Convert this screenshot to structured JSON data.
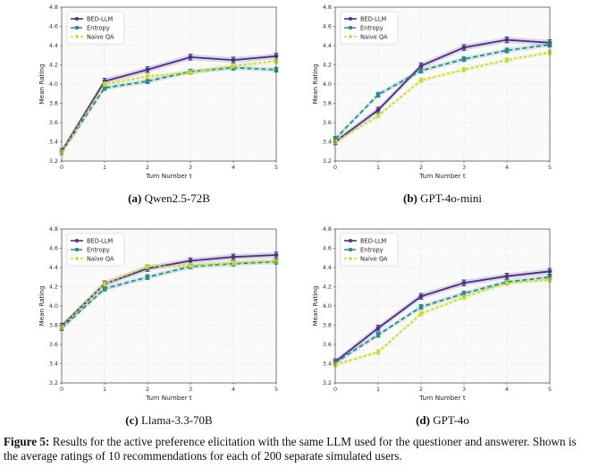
{
  "figure": {
    "caption_label": "Figure 5:",
    "caption_text": " Results for the active preference elicitation with the same LLM used for the questioner and answerer. Shown is the average ratings of 10 recommendations for each of 200 separate simulated users."
  },
  "colors": {
    "BED-LLM": "#4b2f86",
    "Entropy": "#2b8a8a",
    "Naive QA": "#c5dc2f"
  },
  "chart_data": [
    {
      "type": "line",
      "panel_label": "(a)",
      "panel_title": "Qwen2.5-72B",
      "xlabel": "Turn Number t",
      "ylabel": "Mean Rating",
      "xlim": [
        0,
        5
      ],
      "ylim": [
        3.2,
        4.8
      ],
      "xticks": [
        0,
        1,
        2,
        3,
        4,
        5
      ],
      "yticks": [
        3.2,
        3.4,
        3.6,
        3.8,
        4.0,
        4.2,
        4.4,
        4.6,
        4.8
      ],
      "grid": true,
      "legend": "top-left",
      "x": [
        0,
        1,
        2,
        3,
        4,
        5
      ],
      "series": [
        {
          "name": "BED-LLM",
          "values": [
            3.3,
            4.03,
            4.15,
            4.28,
            4.25,
            4.29
          ]
        },
        {
          "name": "Entropy",
          "values": [
            3.29,
            3.96,
            4.03,
            4.13,
            4.17,
            4.15
          ]
        },
        {
          "name": "Naive QA",
          "values": [
            3.29,
            4.0,
            4.08,
            4.12,
            4.19,
            4.24
          ]
        }
      ]
    },
    {
      "type": "line",
      "panel_label": "(b)",
      "panel_title": "GPT-4o-mini",
      "xlabel": "Turn Number t",
      "ylabel": "Mean Rating",
      "xlim": [
        0,
        5
      ],
      "ylim": [
        3.2,
        4.8
      ],
      "xticks": [
        0,
        1,
        2,
        3,
        4,
        5
      ],
      "yticks": [
        3.2,
        3.4,
        3.6,
        3.8,
        4.0,
        4.2,
        4.4,
        4.6,
        4.8
      ],
      "grid": true,
      "legend": "top-left",
      "x": [
        0,
        1,
        2,
        3,
        4,
        5
      ],
      "series": [
        {
          "name": "BED-LLM",
          "values": [
            3.4,
            3.73,
            4.19,
            4.38,
            4.46,
            4.43
          ]
        },
        {
          "name": "Entropy",
          "values": [
            3.43,
            3.89,
            4.14,
            4.26,
            4.35,
            4.41
          ]
        },
        {
          "name": "Naive QA",
          "values": [
            3.4,
            3.67,
            4.04,
            4.15,
            4.25,
            4.33
          ]
        }
      ]
    },
    {
      "type": "line",
      "panel_label": "(c)",
      "panel_title": "Llama-3.3-70B",
      "xlabel": "Turn Number t",
      "ylabel": "Mean Rating",
      "xlim": [
        0,
        5
      ],
      "ylim": [
        3.2,
        4.8
      ],
      "xticks": [
        0,
        1,
        2,
        3,
        4,
        5
      ],
      "yticks": [
        3.2,
        3.4,
        3.6,
        3.8,
        4.0,
        4.2,
        4.4,
        4.6,
        4.8
      ],
      "grid": true,
      "legend": "top-left",
      "x": [
        0,
        1,
        2,
        3,
        4,
        5
      ],
      "series": [
        {
          "name": "BED-LLM",
          "values": [
            3.79,
            4.23,
            4.39,
            4.47,
            4.51,
            4.53
          ]
        },
        {
          "name": "Entropy",
          "values": [
            3.77,
            4.18,
            4.3,
            4.41,
            4.44,
            4.46
          ]
        },
        {
          "name": "Naive QA",
          "values": [
            3.78,
            4.23,
            4.41,
            4.42,
            4.45,
            4.47
          ]
        }
      ]
    },
    {
      "type": "line",
      "panel_label": "(d)",
      "panel_title": "GPT-4o",
      "xlabel": "Turn Number t",
      "ylabel": "Mean Rating",
      "xlim": [
        0,
        5
      ],
      "ylim": [
        3.2,
        4.8
      ],
      "xticks": [
        0,
        1,
        2,
        3,
        4,
        5
      ],
      "yticks": [
        3.2,
        3.4,
        3.6,
        3.8,
        4.0,
        4.2,
        4.4,
        4.6,
        4.8
      ],
      "grid": true,
      "legend": "top-left",
      "x": [
        0,
        1,
        2,
        3,
        4,
        5
      ],
      "series": [
        {
          "name": "BED-LLM",
          "values": [
            3.42,
            3.77,
            4.1,
            4.24,
            4.31,
            4.36
          ]
        },
        {
          "name": "Entropy",
          "values": [
            3.41,
            3.7,
            3.99,
            4.13,
            4.25,
            4.3
          ]
        },
        {
          "name": "Naive QA",
          "values": [
            3.39,
            3.52,
            3.92,
            4.09,
            4.24,
            4.27
          ]
        }
      ]
    }
  ]
}
